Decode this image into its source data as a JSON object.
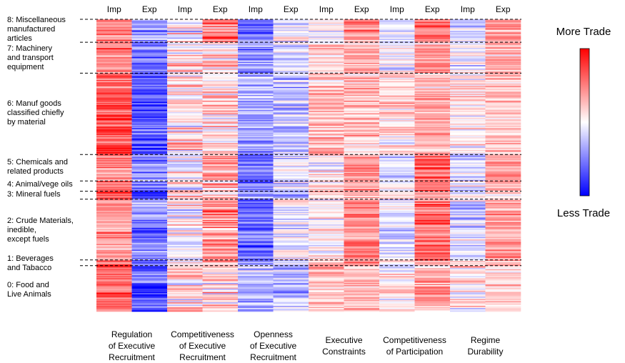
{
  "chart_data": {
    "type": "heatmap",
    "columns": [
      {
        "group": "Regulation\nof Executive\nRecruitment",
        "sub": "Imp",
        "bias": 0.55,
        "noise": 0.35
      },
      {
        "group": "Regulation\nof Executive\nRecruitment",
        "sub": "Exp",
        "bias": -0.6,
        "noise": 0.4
      },
      {
        "group": "Competitiveness\nof Executive\nRecruitment",
        "sub": "Imp",
        "bias": 0.05,
        "noise": 0.45
      },
      {
        "group": "Competitiveness\nof Executive\nRecruitment",
        "sub": "Exp",
        "bias": 0.3,
        "noise": 0.45
      },
      {
        "group": "Openness\nof Executive\nRecruitment",
        "sub": "Imp",
        "bias": -0.45,
        "noise": 0.35
      },
      {
        "group": "Openness\nof Executive\nRecruitment",
        "sub": "Exp",
        "bias": -0.15,
        "noise": 0.35
      },
      {
        "group": "Executive\nConstraints",
        "sub": "Imp",
        "bias": 0.15,
        "noise": 0.3
      },
      {
        "group": "Executive\nConstraints",
        "sub": "Exp",
        "bias": 0.35,
        "noise": 0.3
      },
      {
        "group": "Competitiveness\nof Participation",
        "sub": "Imp",
        "bias": 0.0,
        "noise": 0.35
      },
      {
        "group": "Competitiveness\nof Participation",
        "sub": "Exp",
        "bias": 0.45,
        "noise": 0.35
      },
      {
        "group": "Regime\nDurability",
        "sub": "Imp",
        "bias": -0.05,
        "noise": 0.35
      },
      {
        "group": "Regime\nDurability",
        "sub": "Exp",
        "bias": 0.3,
        "noise": 0.3
      }
    ],
    "groups": [
      "Regulation\nof Executive\nRecruitment",
      "Competitiveness\nof Executive\nRecruitment",
      "Openness\nof Executive\nRecruitment",
      "Executive\nConstraints",
      "Competitiveness\nof Participation",
      "Regime\nDurability"
    ],
    "sectors": [
      {
        "label": "8: Miscellaneous\nmanufactured\narticles",
        "rows": 20
      },
      {
        "label": "7: Machinery\nand transport\nequipment",
        "rows": 27
      },
      {
        "label": "6: Manuf goods\nclassified chiefly\nby material",
        "rows": 71
      },
      {
        "label": "5: Chemicals and\nrelated products",
        "rows": 23
      },
      {
        "label": "4: Animal/vege oils",
        "rows": 9
      },
      {
        "label": "3: Mineral fuels",
        "rows": 7
      },
      {
        "label": "2: Crude Materials,\ninedible,\nexcept fuels",
        "rows": 53
      },
      {
        "label": "1: Beverages\nand Tabacco",
        "rows": 5
      },
      {
        "label": "0: Food and\nLive Animals",
        "rows": 40
      }
    ],
    "colorbar": {
      "high_label": "More Trade",
      "low_label": "Less Trade",
      "high_color": "#ff0000",
      "mid_color": "#ffffff",
      "low_color": "#0000ff"
    },
    "value_range": [
      -1,
      1
    ]
  }
}
